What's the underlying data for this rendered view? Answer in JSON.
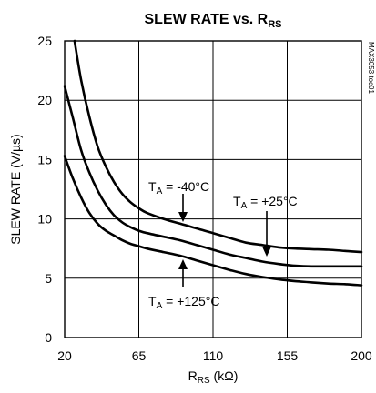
{
  "chart_data": {
    "type": "line",
    "title": "SLEW RATE vs. R",
    "title_sub": "RS",
    "ylabel": "SLEW RATE (V/µs)",
    "xlabel_main": "R",
    "xlabel_sub": "RS",
    "xlabel_unit": " (kΩ)",
    "side_code": "MAX3053 toc01",
    "xlim": [
      20,
      200
    ],
    "ylim": [
      0,
      25
    ],
    "x_ticks": [
      20,
      65,
      110,
      155,
      200
    ],
    "y_ticks": [
      0,
      5,
      10,
      15,
      20,
      25
    ],
    "grid": true,
    "series": [
      {
        "label_main": "T",
        "label_sub": "A",
        "label_rest": " = -40°C",
        "x": [
          26,
          30,
          35,
          40,
          45,
          50,
          55,
          60,
          65,
          70,
          80,
          90,
          100,
          110,
          120,
          130,
          140,
          150,
          160,
          170,
          180,
          190,
          200
        ],
        "y": [
          25,
          21.7,
          18.6,
          16.1,
          14.4,
          13.1,
          12.1,
          11.4,
          10.9,
          10.5,
          10.0,
          9.6,
          9.2,
          8.8,
          8.4,
          8.0,
          7.8,
          7.6,
          7.5,
          7.45,
          7.4,
          7.3,
          7.2
        ]
      },
      {
        "label_main": "T",
        "label_sub": "A",
        "label_rest": " = +25°C",
        "x": [
          20,
          25,
          30,
          35,
          40,
          45,
          50,
          55,
          60,
          65,
          70,
          80,
          90,
          100,
          110,
          120,
          130,
          140,
          150,
          160,
          170,
          180,
          190,
          200
        ],
        "y": [
          21.2,
          18.5,
          15.8,
          13.9,
          12.4,
          11.2,
          10.3,
          9.7,
          9.3,
          9.0,
          8.8,
          8.5,
          8.2,
          7.8,
          7.4,
          7.0,
          6.7,
          6.4,
          6.2,
          6.05,
          6.0,
          6.0,
          6.0,
          6.0
        ]
      },
      {
        "label_main": "T",
        "label_sub": "A",
        "label_rest": " = +125°C",
        "x": [
          20,
          25,
          30,
          35,
          40,
          45,
          50,
          55,
          60,
          65,
          70,
          80,
          90,
          100,
          110,
          120,
          130,
          140,
          150,
          160,
          170,
          180,
          190,
          200
        ],
        "y": [
          15.3,
          13.4,
          11.8,
          10.5,
          9.6,
          9.0,
          8.6,
          8.2,
          7.9,
          7.7,
          7.5,
          7.2,
          6.9,
          6.5,
          6.1,
          5.7,
          5.35,
          5.1,
          4.9,
          4.75,
          4.65,
          4.55,
          4.5,
          4.4
        ]
      }
    ]
  }
}
